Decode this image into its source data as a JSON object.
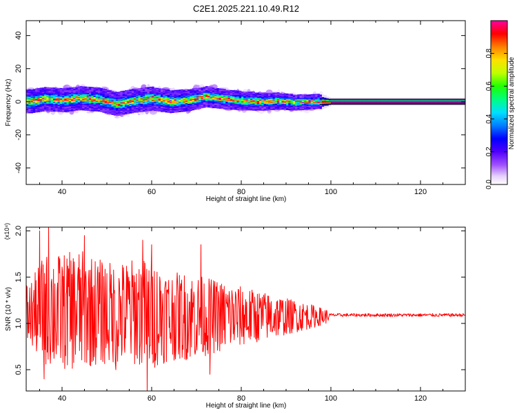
{
  "title": "C2E1.2025.221.10.49.R12",
  "colors": {
    "snr_line": "#ff0000",
    "background": "#ffffff",
    "axis": "#000000"
  },
  "chart_data": [
    {
      "type": "heatmap",
      "xlabel": "Height of straight line (km)",
      "ylabel": "Frequency (Hz)",
      "xlim": [
        32,
        130
      ],
      "ylim": [
        -50,
        49
      ],
      "x_ticks": [
        "40",
        "60",
        "80",
        "100",
        "120"
      ],
      "y_ticks": [
        "40",
        "20",
        "0",
        "-20",
        "-40"
      ],
      "colorbar": {
        "label": "Normalized spectral amplitude",
        "range": [
          0.0,
          1.0
        ],
        "ticks": [
          "0.0",
          "0.2",
          "0.4",
          "0.6",
          "0.8"
        ],
        "colormap": "rainbow (white-violet-blue-cyan-green-yellow-orange-red-magenta)"
      },
      "band_centre_hz": [
        [
          33,
          0.2
        ],
        [
          36,
          1.5
        ],
        [
          40,
          0.8
        ],
        [
          44,
          2.0
        ],
        [
          48,
          1.2
        ],
        [
          52,
          -1.5
        ],
        [
          56,
          0.5
        ],
        [
          60,
          1.8
        ],
        [
          64,
          0.0
        ],
        [
          68,
          0.8
        ],
        [
          72,
          3.0
        ],
        [
          76,
          1.5
        ],
        [
          80,
          0.5
        ],
        [
          84,
          0.0
        ],
        [
          88,
          0.3
        ],
        [
          92,
          -0.5
        ],
        [
          96,
          0.0
        ],
        [
          100,
          0.0
        ],
        [
          130,
          0.0
        ]
      ],
      "band_halfwidth_hz": [
        [
          33,
          5
        ],
        [
          60,
          5
        ],
        [
          80,
          4
        ],
        [
          98,
          3
        ],
        [
          100,
          1.5
        ],
        [
          130,
          1.5
        ]
      ],
      "notes": "Narrow saturated line at 0 Hz from ~98 km to 130 km; broad noisy band from 33 to 98 km"
    },
    {
      "type": "line",
      "xlabel": "Height of straight line (km)",
      "ylabel": "SNR (10 * v/v)",
      "y_multiplier": "(x10⁴)",
      "xlim": [
        32,
        130
      ],
      "ylim": [
        0.27,
        2.04
      ],
      "x_ticks": [
        "40",
        "60",
        "80",
        "100",
        "120"
      ],
      "y_ticks": [
        "2.0",
        "1.5",
        "1.0",
        "0.5"
      ],
      "series": [
        {
          "color": "#ff0000",
          "x_range": [
            32,
            130
          ],
          "envelope": [
            [
              33,
              0.75,
              1.45
            ],
            [
              36,
              0.55,
              1.75
            ],
            [
              40,
              0.5,
              1.75
            ],
            [
              44,
              0.5,
              1.8
            ],
            [
              48,
              0.55,
              1.7
            ],
            [
              52,
              0.55,
              1.65
            ],
            [
              56,
              0.55,
              1.7
            ],
            [
              60,
              0.5,
              1.7
            ],
            [
              64,
              0.6,
              1.55
            ],
            [
              68,
              0.6,
              1.55
            ],
            [
              72,
              0.65,
              1.5
            ],
            [
              76,
              0.7,
              1.45
            ],
            [
              80,
              0.75,
              1.4
            ],
            [
              84,
              0.8,
              1.35
            ],
            [
              88,
              0.85,
              1.3
            ],
            [
              92,
              0.9,
              1.25
            ],
            [
              96,
              0.95,
              1.2
            ],
            [
              99,
              1.0,
              1.15
            ],
            [
              100,
              1.06,
              1.12
            ],
            [
              130,
              1.06,
              1.12
            ]
          ],
          "spikes": [
            [
              35,
              2.0
            ],
            [
              37,
              2.05
            ],
            [
              45,
              1.95
            ],
            [
              59,
              0.27
            ],
            [
              58,
              1.9
            ],
            [
              71,
              1.85
            ],
            [
              73,
              0.45
            ],
            [
              60,
              1.85
            ],
            [
              36,
              0.4
            ],
            [
              52,
              0.5
            ]
          ],
          "plateau_value_after_100km": 1.09
        }
      ]
    }
  ]
}
